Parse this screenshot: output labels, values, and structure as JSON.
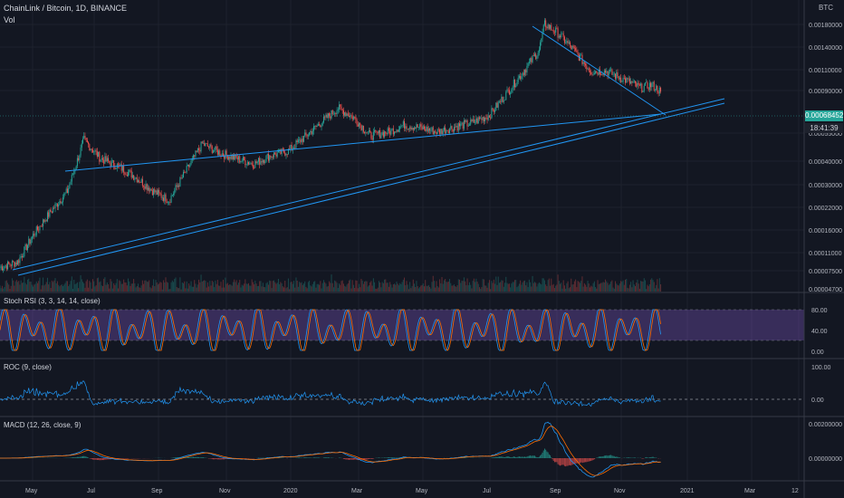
{
  "header": {
    "title": "ChainLink / Bitcoin, 1D, BINANCE",
    "volume_label": "Vol",
    "currency": "BTC"
  },
  "price_axis": {
    "ticks": [
      "0.00180000",
      "0.00140000",
      "0.00110000",
      "0.00090000",
      "0.00055000",
      "0.00040000",
      "0.00030000",
      "0.00022000",
      "0.00016000",
      "0.00011000",
      "0.00007500",
      "0.00004700"
    ],
    "last_price": "0.00068452",
    "countdown": "18:41:39"
  },
  "panels": {
    "stoch": {
      "label": "Stoch RSI (3, 3, 14, 14, close)",
      "ticks": [
        "80.00",
        "40.00",
        "0.00"
      ]
    },
    "roc": {
      "label": "ROC (9, close)",
      "ticks": [
        "100.00",
        "0.00"
      ]
    },
    "macd": {
      "label": "MACD (12, 26, close, 9)",
      "ticks": [
        "0.00200000",
        "0.00000000"
      ]
    }
  },
  "time_axis": [
    "May",
    "Jul",
    "Sep",
    "Nov",
    "2020",
    "Mar",
    "May",
    "Jul",
    "Sep",
    "Nov",
    "2021",
    "Mar",
    "12"
  ],
  "colors": {
    "background": "#131722",
    "up": "#26a69a",
    "down": "#ef5350",
    "trendline": "#2196f3",
    "stoch_band": "#7e57c2",
    "roc": "#2196f3",
    "macd": "#2196f3",
    "signal": "#ff6d00"
  },
  "chart_data": {
    "type": "line",
    "title": "ChainLink / Bitcoin, 1D, BINANCE",
    "scale": "log",
    "ylim": [
      4.7e-05,
      0.0022
    ],
    "x": [
      "2019-04-15",
      "2019-05-01",
      "2019-05-15",
      "2019-06-01",
      "2019-06-15",
      "2019-06-30",
      "2019-07-15",
      "2019-08-01",
      "2019-08-15",
      "2019-09-01",
      "2019-09-15",
      "2019-10-01",
      "2019-10-15",
      "2019-11-01",
      "2019-11-15",
      "2019-12-01",
      "2019-12-15",
      "2020-01-01",
      "2020-01-15",
      "2020-02-01",
      "2020-02-15",
      "2020-03-01",
      "2020-03-15",
      "2020-04-01",
      "2020-04-15",
      "2020-05-01",
      "2020-05-15",
      "2020-06-01",
      "2020-06-15",
      "2020-07-01",
      "2020-07-15",
      "2020-08-01",
      "2020-08-15",
      "2020-08-20",
      "2020-09-01",
      "2020-09-15",
      "2020-10-01",
      "2020-10-15",
      "2020-11-01",
      "2020-11-15",
      "2020-11-25",
      "2020-12-03"
    ],
    "series": [
      {
        "values": [
          6.5e-05,
          7e-05,
          0.0001,
          0.00014,
          0.00018,
          0.00036,
          0.00028,
          0.00025,
          0.00022,
          0.00018,
          0.00016,
          0.00024,
          0.00034,
          0.0003,
          0.00028,
          0.00026,
          0.00029,
          0.00031,
          0.00037,
          0.00046,
          0.00055,
          0.00048,
          0.00038,
          0.0004,
          0.00044,
          0.00042,
          0.0004,
          0.00043,
          0.00045,
          0.0005,
          0.00065,
          0.0009,
          0.0012,
          0.0017,
          0.0015,
          0.0012,
          0.0009,
          0.0009,
          0.0008,
          0.00072,
          0.00075,
          0.00068452
        ]
      }
    ],
    "legend": "none",
    "grid": true
  }
}
